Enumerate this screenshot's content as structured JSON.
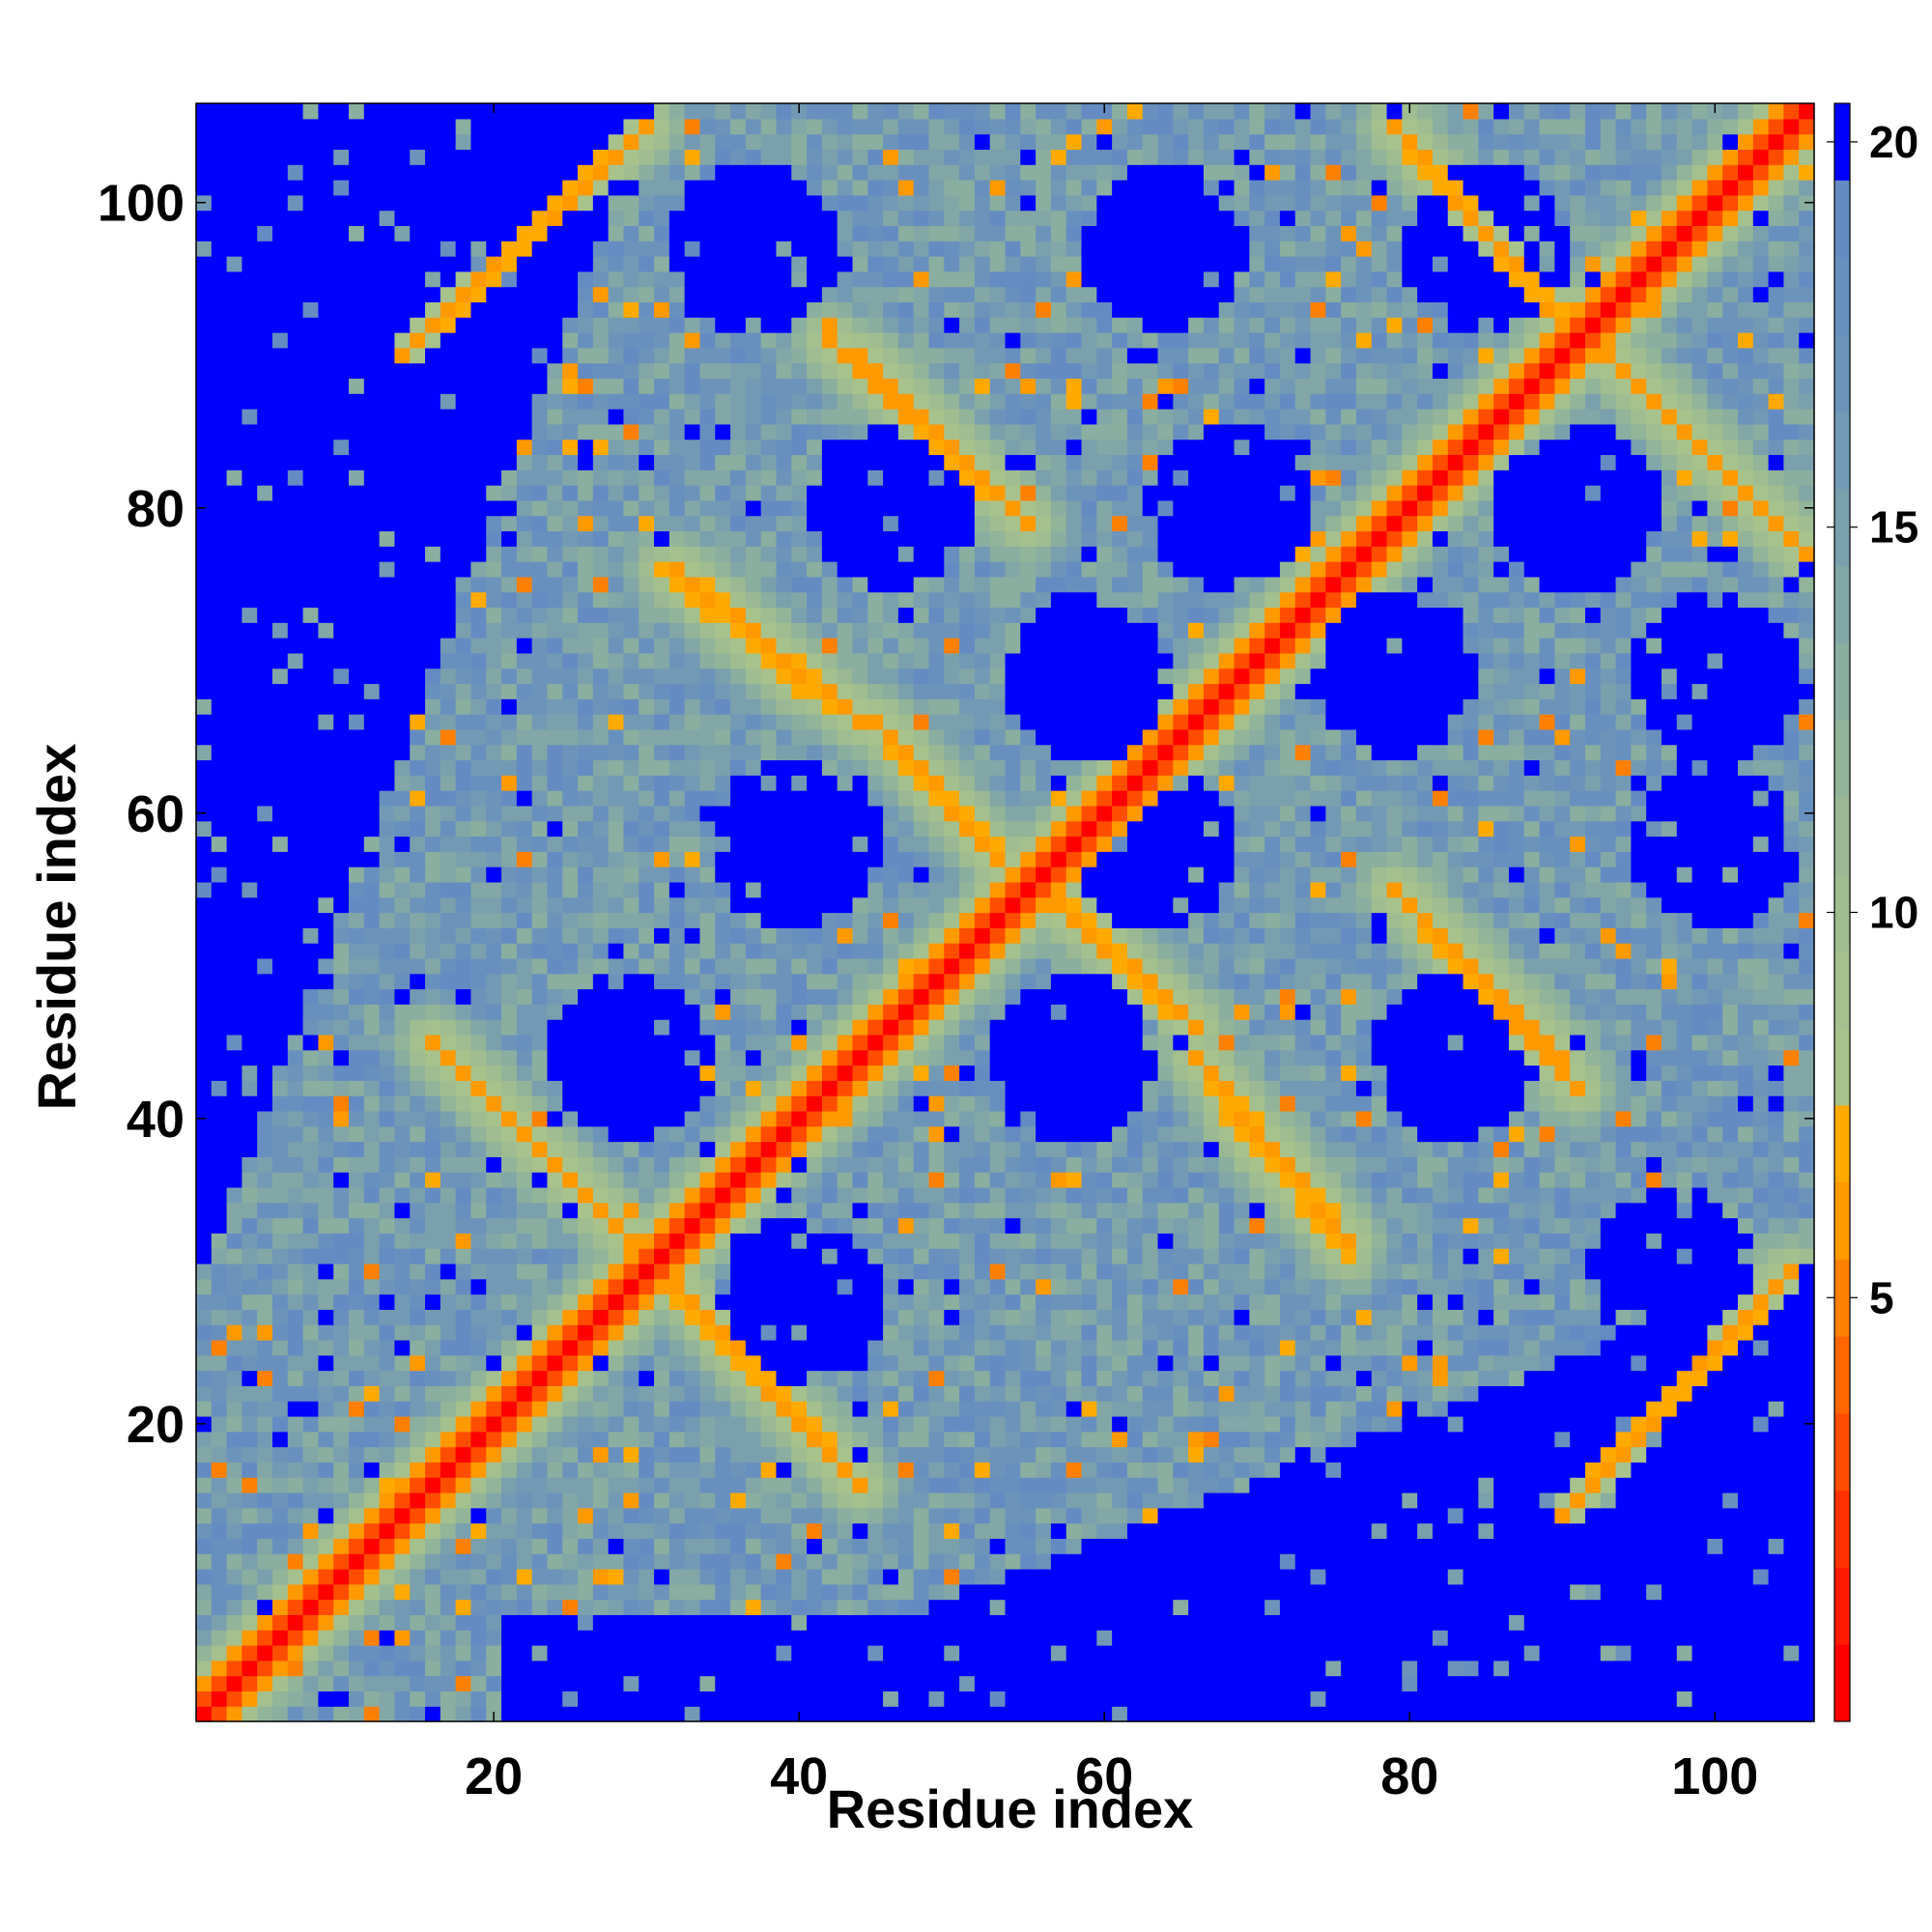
{
  "chart_data": {
    "type": "heatmap",
    "title": "",
    "xlabel": "Residue index",
    "ylabel": "Residue index",
    "n_residues": 106,
    "xlim": [
      1,
      106
    ],
    "ylim": [
      1,
      106
    ],
    "x_ticks": [
      20,
      40,
      60,
      80,
      100
    ],
    "y_ticks": [
      20,
      40,
      60,
      80,
      100
    ],
    "x_tick_labels": [
      "20",
      "40",
      "60",
      "80",
      "100"
    ],
    "y_tick_labels": [
      "20",
      "40",
      "60",
      "80",
      "100"
    ],
    "grid": false,
    "colorbar": {
      "orientation": "vertical",
      "placement": "right",
      "ticks": [
        5,
        10,
        15,
        20
      ],
      "tick_labels": [
        "5",
        "10",
        "15",
        "20"
      ],
      "range": [
        0,
        21
      ],
      "clip_above": 21,
      "above_clip_color": "#0000ff",
      "bands": [
        {
          "from": 0,
          "to": 1,
          "color": "#ff0000"
        },
        {
          "from": 1,
          "to": 2,
          "color": "#ff1a00"
        },
        {
          "from": 2,
          "to": 3,
          "color": "#ff3300"
        },
        {
          "from": 3,
          "to": 4,
          "color": "#ff4d00"
        },
        {
          "from": 4,
          "to": 5,
          "color": "#ff6600"
        },
        {
          "from": 5,
          "to": 6,
          "color": "#ff8000"
        },
        {
          "from": 6,
          "to": 7,
          "color": "#ff9900"
        },
        {
          "from": 7,
          "to": 8,
          "color": "#ffaa00"
        },
        {
          "from": 8,
          "to": 9,
          "color": "#a8c28c"
        },
        {
          "from": 9,
          "to": 10,
          "color": "#a4c08e"
        },
        {
          "from": 10,
          "to": 11,
          "color": "#9fbd90"
        },
        {
          "from": 11,
          "to": 12,
          "color": "#9ab893"
        },
        {
          "from": 12,
          "to": 13,
          "color": "#92b499"
        },
        {
          "from": 13,
          "to": 14,
          "color": "#8aae9f"
        },
        {
          "from": 14,
          "to": 15,
          "color": "#82a7a6"
        },
        {
          "from": 15,
          "to": 16,
          "color": "#7aa0ae"
        },
        {
          "from": 16,
          "to": 17,
          "color": "#729ab4"
        },
        {
          "from": 17,
          "to": 18,
          "color": "#6c94ba"
        },
        {
          "from": 18,
          "to": 19,
          "color": "#6890be"
        },
        {
          "from": 19,
          "to": 20,
          "color": "#648cc2"
        },
        {
          "from": 20,
          "to": 21,
          "color": "#5a88c6"
        }
      ]
    },
    "value_description": "Inter-residue distance map (symmetric): diagonal near 0, helix-helix contact stripes 4-8, surrounding shells 9-20, regions beyond 21 shown in blue",
    "features": {
      "main_diagonal": {
        "from": [
          1,
          1
        ],
        "to": [
          106,
          106
        ],
        "value": 0
      },
      "antiparallel_stripes": [
        {
          "from": [
            16,
            45
          ],
          "to": [
            31,
            30
          ],
          "value": 6
        },
        {
          "from": [
            30,
            31
          ],
          "to": [
            44,
            16
          ],
          "value": 6
        },
        {
          "from": [
            45,
            66
          ],
          "to": [
            54,
            56
          ],
          "value": 6
        },
        {
          "from": [
            56,
            55
          ],
          "to": [
            66,
            46
          ],
          "value": 6
        },
        {
          "from": [
            66,
            44
          ],
          "to": [
            76,
            32
          ],
          "value": 6
        },
        {
          "from": [
            44,
            66
          ],
          "to": [
            32,
            76
          ],
          "value": 6
        },
        {
          "from": [
            80,
            54
          ],
          "to": [
            91,
            42
          ],
          "value": 6
        },
        {
          "from": [
            54,
            80
          ],
          "to": [
            42,
            91
          ],
          "value": 6
        },
        {
          "from": [
            79,
            105
          ],
          "to": [
            91,
            91
          ],
          "value": 6
        },
        {
          "from": [
            91,
            92
          ],
          "to": [
            106,
            77
          ],
          "value": 6
        },
        {
          "from": [
            44,
            90
          ],
          "to": [
            55,
            79
          ],
          "value": 6
        },
        {
          "from": [
            90,
            44
          ],
          "to": [
            79,
            55
          ],
          "value": 6
        },
        {
          "from": [
            14,
            90
          ],
          "to": [
            30,
            105
          ],
          "value": 6
        },
        {
          "from": [
            90,
            14
          ],
          "to": [
            105,
            30
          ],
          "value": 6
        },
        {
          "from": [
            31,
            76
          ],
          "to": [
            40,
            68
          ],
          "value": 7
        },
        {
          "from": [
            76,
            31
          ],
          "to": [
            68,
            40
          ],
          "value": 7
        }
      ],
      "empty_pockets": [
        [
          37,
          97
        ],
        [
          64,
          97
        ],
        [
          85,
          97
        ],
        [
          46,
          80
        ],
        [
          68,
          80
        ],
        [
          91,
          80
        ],
        [
          59,
          69
        ],
        [
          79,
          69
        ],
        [
          100,
          69
        ],
        [
          40,
          58
        ],
        [
          63,
          58
        ],
        [
          100,
          58
        ],
        [
          29,
          44
        ],
        [
          58,
          44
        ],
        [
          83,
          44
        ],
        [
          40,
          28
        ],
        [
          97,
          30
        ]
      ],
      "outer_empty_regions": [
        {
          "region": "upper-left",
          "boundary": "above line from (1,30) to (30,106)"
        },
        {
          "region": "lower-right",
          "boundary": "below line from (30,1) to (106,30)"
        }
      ]
    }
  }
}
